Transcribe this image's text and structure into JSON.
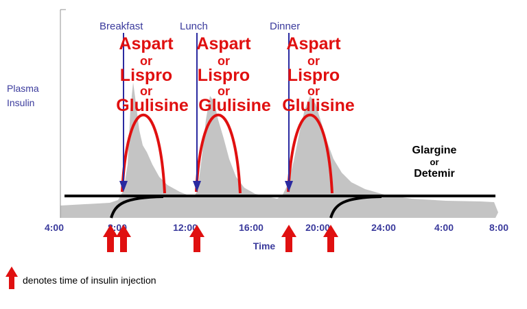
{
  "y_label": [
    "Plasma",
    "Insulin"
  ],
  "x_label": "Time",
  "x_ticks": [
    "4:00",
    "8:00",
    "12:00",
    "16:00",
    "20:00",
    "24:00",
    "4:00",
    "8:00"
  ],
  "meals": [
    {
      "label": "Breakfast"
    },
    {
      "label": "Lunch"
    },
    {
      "label": "Dinner"
    }
  ],
  "bolus_insulin": {
    "line1": "Aspart",
    "or1": "or",
    "line2": "Lispro",
    "or2": "or",
    "line3": "Glulisine"
  },
  "basal_insulin": {
    "line1": "Glargine",
    "or": "or",
    "line2": "Detemir"
  },
  "legend": {
    "text": "denotes time of insulin injection"
  },
  "colors": {
    "axis_text": "#3a3a9c",
    "bolus": "#e01010",
    "physiologic_fill": "#c4c4c4",
    "basal_line": "#000000",
    "injection_arrow": "#e01010",
    "meal_arrow": "#2a2aa0"
  }
}
